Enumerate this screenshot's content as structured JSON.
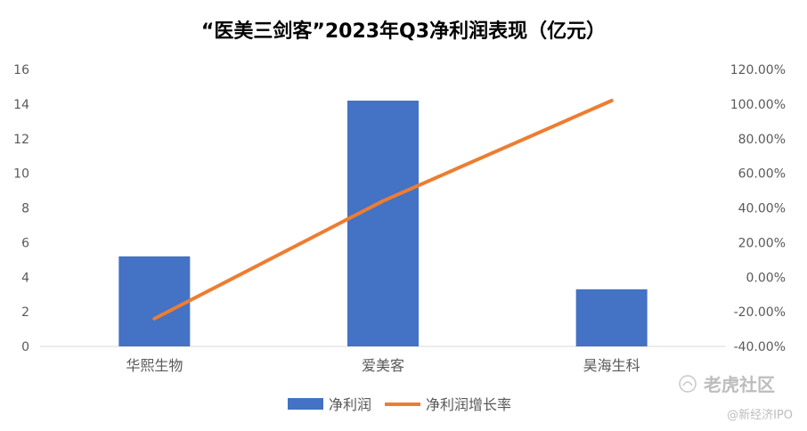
{
  "chart_data": {
    "type": "bar",
    "title": "“医美三剑客”2023年Q3净利润表现（亿元）",
    "categories": [
      "华熙生物",
      "爱美客",
      "昊海生科"
    ],
    "series": [
      {
        "name": "净利润",
        "type": "bar",
        "axis": "left",
        "color": "#4472C4",
        "values": [
          5.2,
          14.2,
          3.3
        ]
      },
      {
        "name": "净利润增长率",
        "type": "line",
        "axis": "right",
        "color": "#ED7D31",
        "values": [
          -0.24,
          0.44,
          1.02
        ]
      }
    ],
    "y_left": {
      "min": 0,
      "max": 16,
      "step": 2,
      "ticks": [
        "0",
        "2",
        "4",
        "6",
        "8",
        "10",
        "12",
        "14",
        "16"
      ]
    },
    "y_right": {
      "min": -0.4,
      "max": 1.2,
      "step": 0.2,
      "ticks": [
        "-40.00%",
        "-20.00%",
        "0.00%",
        "20.00%",
        "40.00%",
        "60.00%",
        "80.00%",
        "100.00%",
        "120.00%"
      ]
    },
    "grid": false,
    "legend_position": "bottom"
  },
  "watermark": {
    "brand": "老虎社区",
    "handle": "@新经济IPO"
  }
}
